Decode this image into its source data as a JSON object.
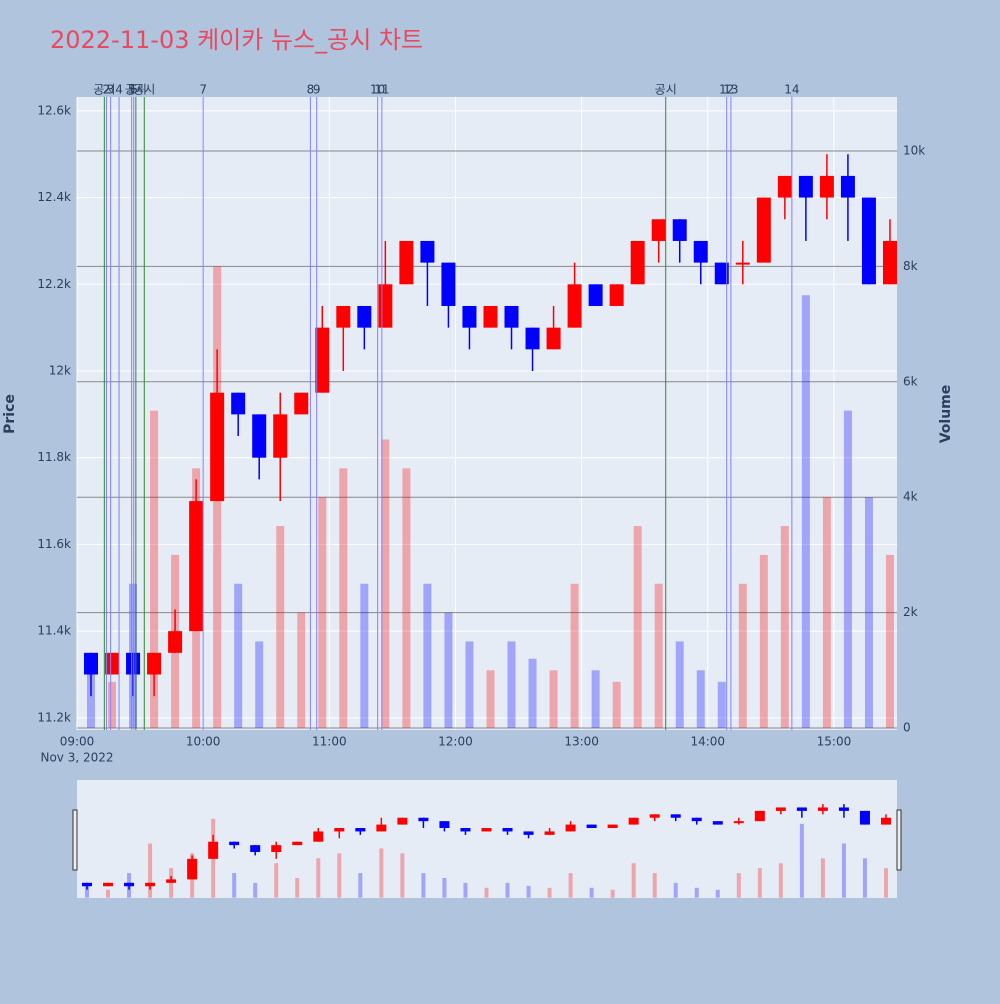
{
  "chart_data": {
    "type": "candlestick",
    "title": "2022-11-03 케이카 뉴스_공시 차트",
    "x_date_label": "Nov 3, 2022",
    "x": [
      "09:00",
      "09:10",
      "09:20",
      "09:30",
      "09:40",
      "09:50",
      "10:00",
      "10:10",
      "10:20",
      "10:30",
      "10:40",
      "10:50",
      "11:00",
      "11:10",
      "11:20",
      "11:30",
      "11:40",
      "11:50",
      "12:00",
      "12:10",
      "12:20",
      "12:30",
      "12:40",
      "12:50",
      "13:00",
      "13:10",
      "13:20",
      "13:30",
      "13:40",
      "13:50",
      "14:00",
      "14:10",
      "14:20",
      "14:30",
      "14:40",
      "14:50",
      "15:00",
      "15:10",
      "15:20"
    ],
    "open": [
      11350,
      11300,
      11350,
      11300,
      11350,
      11400,
      11700,
      11950,
      11900,
      11800,
      11900,
      11950,
      12100,
      12150,
      12100,
      12200,
      12300,
      12250,
      12150,
      12100,
      12150,
      12100,
      12050,
      12100,
      12200,
      12150,
      12200,
      12300,
      12350,
      12300,
      12250,
      12250,
      12250,
      12400,
      12450,
      12400,
      12450,
      12400,
      12200
    ],
    "high": [
      11350,
      11350,
      11350,
      11350,
      11450,
      11750,
      12050,
      11950,
      11900,
      11950,
      11950,
      12150,
      12150,
      12150,
      12300,
      12300,
      12300,
      12250,
      12150,
      12150,
      12150,
      12100,
      12150,
      12250,
      12200,
      12200,
      12300,
      12350,
      12350,
      12300,
      12250,
      12300,
      12400,
      12450,
      12450,
      12500,
      12500,
      12400,
      12350
    ],
    "low": [
      11250,
      11300,
      11250,
      11250,
      11350,
      11400,
      11700,
      11850,
      11750,
      11700,
      11900,
      11950,
      12000,
      12050,
      12100,
      12200,
      12150,
      12100,
      12050,
      12100,
      12050,
      12000,
      12050,
      12100,
      12150,
      12150,
      12200,
      12250,
      12250,
      12200,
      12200,
      12200,
      12250,
      12350,
      12300,
      12350,
      12300,
      12200,
      12200
    ],
    "close": [
      11300,
      11350,
      11300,
      11350,
      11400,
      11700,
      11950,
      11900,
      11800,
      11900,
      11950,
      12100,
      12150,
      12100,
      12200,
      12300,
      12250,
      12150,
      12100,
      12150,
      12100,
      12050,
      12100,
      12200,
      12150,
      12200,
      12300,
      12350,
      12300,
      12250,
      12200,
      12250,
      12400,
      12450,
      12400,
      12450,
      12400,
      12200,
      12300
    ],
    "volume": [
      1200,
      800,
      2500,
      5500,
      3000,
      4500,
      8000,
      2500,
      1500,
      3500,
      2000,
      4000,
      4500,
      2500,
      5000,
      4500,
      2500,
      2000,
      1500,
      1000,
      1500,
      1200,
      1000,
      2500,
      1000,
      800,
      3500,
      2500,
      1500,
      1000,
      800,
      2500,
      3000,
      3500,
      7500,
      4000,
      5500,
      4000,
      3000
    ],
    "up_color": "#ff0000",
    "down_color": "#0000ff",
    "xlim": [
      "09:00",
      "15:30"
    ],
    "xticks": [
      "09:00",
      "10:00",
      "11:00",
      "12:00",
      "13:00",
      "14:00",
      "15:00"
    ],
    "ylim": [
      11172,
      12632
    ],
    "yticks": [
      {
        "value": 11200,
        "label": "11.2k"
      },
      {
        "value": 11400,
        "label": "11.4k"
      },
      {
        "value": 11600,
        "label": "11.6k"
      },
      {
        "value": 11800,
        "label": "11.8k"
      },
      {
        "value": 12000,
        "label": "12k"
      },
      {
        "value": 12200,
        "label": "12.2k"
      },
      {
        "value": 12400,
        "label": "12.4k"
      },
      {
        "value": 12600,
        "label": "12.6k"
      }
    ],
    "y2lim": [
      -35,
      10936
    ],
    "y2ticks": [
      0,
      {
        "value": 2000,
        "label": "2k"
      },
      {
        "value": 4000,
        "label": "4k"
      },
      {
        "value": 6000,
        "label": "6k"
      },
      {
        "value": 8000,
        "label": "8k"
      },
      {
        "value": 10000,
        "label": "10k"
      }
    ],
    "ylabel": "Price",
    "y2label": "Volume",
    "grid": true,
    "rangeslider": true,
    "annotations": [
      {
        "x": "09:13",
        "label": "공시",
        "color": "#2e8b2e"
      },
      {
        "x": "09:14",
        "label": "2",
        "color": "#8080ff"
      },
      {
        "x": "09:16",
        "label": "3",
        "color": "#8080ff"
      },
      {
        "x": "09:20",
        "label": "4",
        "color": "#8080ff"
      },
      {
        "x": "09:26",
        "label": "5",
        "color": "#8080ff"
      },
      {
        "x": "09:27",
        "label": "6",
        "color": "#8080ff"
      },
      {
        "x": "09:28",
        "label": "공시",
        "color": "#2e8b2e"
      },
      {
        "x": "09:32",
        "label": "공시",
        "color": "#2e8b2e"
      },
      {
        "x": "10:00",
        "label": "7",
        "color": "#8080ff"
      },
      {
        "x": "10:51",
        "label": "8",
        "color": "#8080ff"
      },
      {
        "x": "10:54",
        "label": "9",
        "color": "#8080ff"
      },
      {
        "x": "11:23",
        "label": "10",
        "color": "#8080ff"
      },
      {
        "x": "11:25",
        "label": "11",
        "color": "#8080ff"
      },
      {
        "x": "13:40",
        "label": "공시",
        "color": "#2e8b2e"
      },
      {
        "x": "14:09",
        "label": "12",
        "color": "#8080ff"
      },
      {
        "x": "14:11",
        "label": "13",
        "color": "#8080ff"
      },
      {
        "x": "14:40",
        "label": "14",
        "color": "#8080ff"
      }
    ]
  }
}
